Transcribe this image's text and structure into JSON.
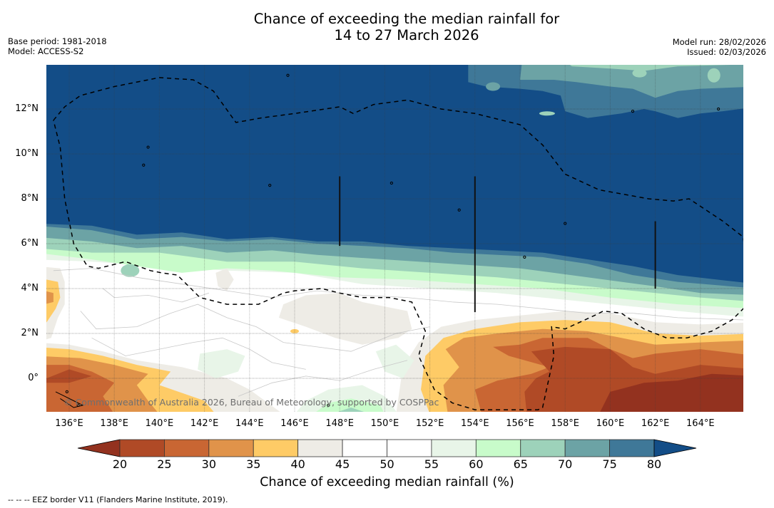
{
  "header": {
    "title_line1": "Chance of exceeding the median rainfall for",
    "title_line2": "14 to 27 March 2026",
    "base_period": "Base period: 1981-2018",
    "model": "Model: ACCESS-S2",
    "model_run": "Model run: 28/02/2026",
    "issued": "Issued: 02/03/2026"
  },
  "map": {
    "lon_range": [
      135.0,
      165.9
    ],
    "lat_range": [
      -1.5,
      14.0
    ],
    "lat_ticks": [
      {
        "value": 12,
        "label": "12°N"
      },
      {
        "value": 10,
        "label": "10°N"
      },
      {
        "value": 8,
        "label": "8°N"
      },
      {
        "value": 6,
        "label": "6°N"
      },
      {
        "value": 4,
        "label": "4°N"
      },
      {
        "value": 2,
        "label": "2°N"
      },
      {
        "value": 0,
        "label": "0°"
      }
    ],
    "lon_ticks": [
      {
        "value": 136,
        "label": "136°E"
      },
      {
        "value": 138,
        "label": "138°E"
      },
      {
        "value": 140,
        "label": "140°E"
      },
      {
        "value": 142,
        "label": "142°E"
      },
      {
        "value": 144,
        "label": "144°E"
      },
      {
        "value": 146,
        "label": "146°E"
      },
      {
        "value": 148,
        "label": "148°E"
      },
      {
        "value": 150,
        "label": "150°E"
      },
      {
        "value": 152,
        "label": "152°E"
      },
      {
        "value": 154,
        "label": "154°E"
      },
      {
        "value": 156,
        "label": "156°E"
      },
      {
        "value": 158,
        "label": "158°E"
      },
      {
        "value": 160,
        "label": "160°E"
      },
      {
        "value": 162,
        "label": "162°E"
      },
      {
        "value": 164,
        "label": "164°E"
      }
    ],
    "copyright": "© Commonwealth of Australia 2026, Bureau of Meteorology, supported by COSPPac"
  },
  "colorbar": {
    "label": "Chance of exceeding median rainfall (%)",
    "ticks": [
      "20",
      "25",
      "30",
      "35",
      "40",
      "45",
      "50",
      "55",
      "60",
      "65",
      "70",
      "75",
      "80"
    ],
    "under_color": "#93321f",
    "over_color": "#134d87",
    "bins": [
      {
        "range": "20-25",
        "color": "#b04a26"
      },
      {
        "range": "25-30",
        "color": "#c96633"
      },
      {
        "range": "30-35",
        "color": "#e0934a"
      },
      {
        "range": "35-40",
        "color": "#fecb66"
      },
      {
        "range": "40-45",
        "color": "#eeece6"
      },
      {
        "range": "45-50",
        "color": "#ffffff"
      },
      {
        "range": "50-55",
        "color": "#ffffff"
      },
      {
        "range": "55-60",
        "color": "#e8f5e8"
      },
      {
        "range": "60-65",
        "color": "#c8fbca"
      },
      {
        "range": "65-70",
        "color": "#9dd2ba"
      },
      {
        "range": "70-75",
        "color": "#6ca3a5"
      },
      {
        "range": "75-80",
        "color": "#3f7898"
      }
    ]
  },
  "footnote": "--  --  -- EEZ border V11 (Flanders Marine Institute, 2019)."
}
